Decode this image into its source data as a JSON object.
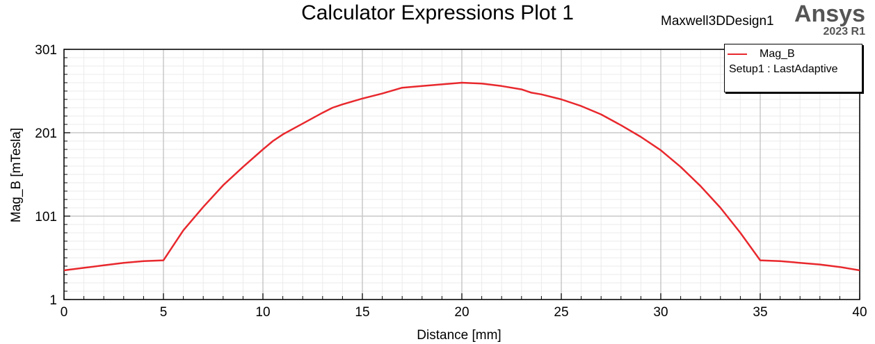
{
  "header": {
    "title": "Calculator Expressions Plot 1",
    "design_name": "Maxwell3DDesign1",
    "brand": "Ansys",
    "version": "2023 R1"
  },
  "legend": {
    "series_label": "Mag_B",
    "setup_label": "Setup1 : LastAdaptive"
  },
  "colors": {
    "series": "#e8282d",
    "grid_major": "#c8c8c8",
    "grid_minor": "#ebebeb"
  },
  "chart_data": {
    "type": "line",
    "title": "Calculator Expressions Plot 1",
    "xlabel": "Distance [mm]",
    "ylabel": "Mag_B [mTesla]",
    "xlim": [
      0,
      40
    ],
    "ylim": [
      1,
      301
    ],
    "xticks": [
      0,
      5,
      10,
      15,
      20,
      25,
      30,
      35,
      40
    ],
    "yticks": [
      1,
      101,
      201,
      301
    ],
    "grid": true,
    "legend_position": "top-right",
    "series": [
      {
        "name": "Mag_B",
        "color": "#e8282d",
        "x": [
          0,
          1,
          2,
          3,
          4,
          5,
          6,
          7,
          8,
          9,
          10,
          10.5,
          11,
          12,
          13,
          13.5,
          14,
          15,
          16,
          17,
          18,
          19,
          20,
          21,
          22,
          23,
          23.5,
          24,
          25,
          26,
          27,
          28,
          29,
          30,
          31,
          32,
          33,
          34,
          35,
          36,
          37,
          38,
          39,
          40
        ],
        "y": [
          36,
          39,
          42,
          45,
          47,
          48,
          84,
          112,
          138,
          160,
          181,
          191,
          199,
          212,
          225,
          231,
          235,
          242,
          248,
          255,
          257,
          259,
          261,
          260,
          257,
          253,
          249,
          247,
          241,
          233,
          223,
          210,
          196,
          180,
          160,
          137,
          111,
          81,
          48,
          47,
          45,
          43,
          40,
          36
        ]
      }
    ]
  }
}
